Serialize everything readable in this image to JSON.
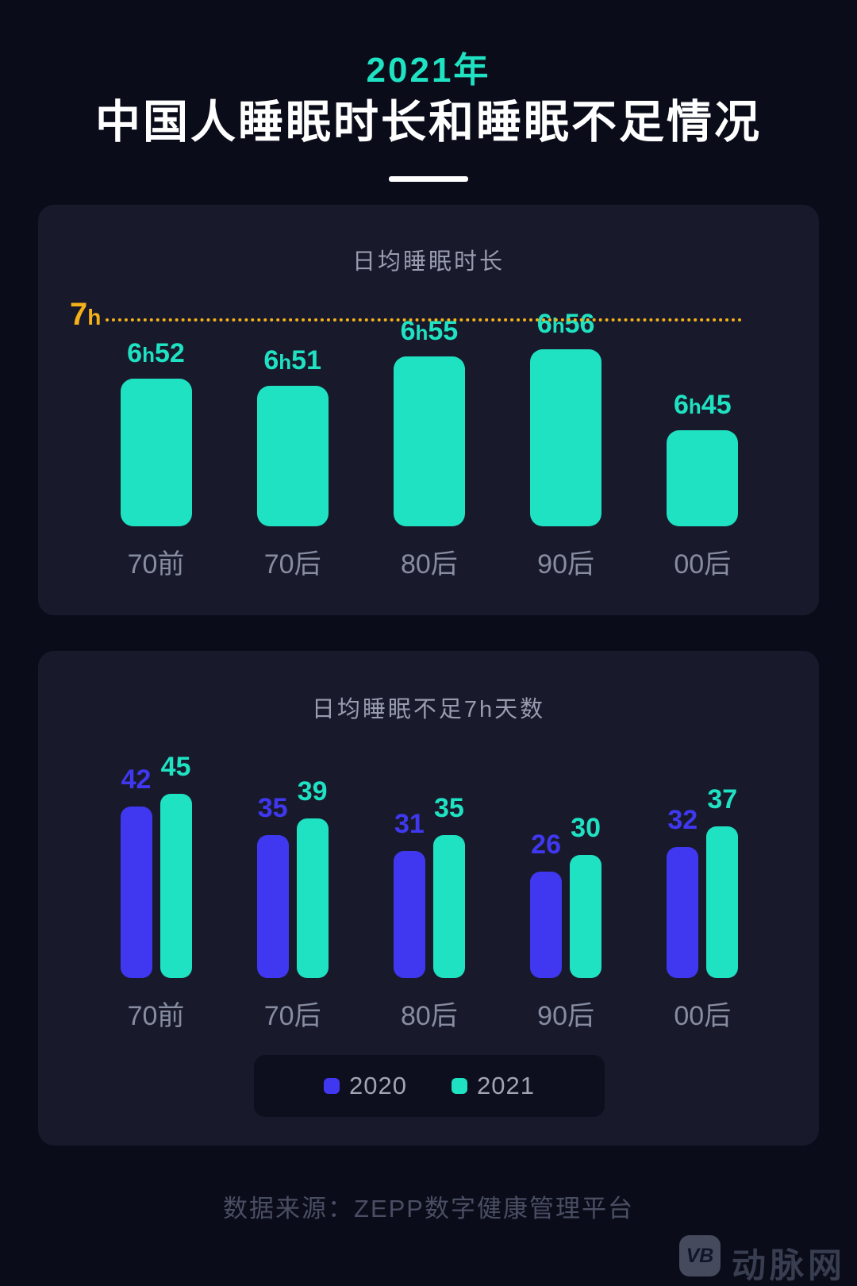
{
  "header": {
    "year_label": "2021年",
    "title": "中国人睡眠时长和睡眠不足情况"
  },
  "colors": {
    "page_bg": "#0a0c1a",
    "card_bg": "#181a2c",
    "legend_bg": "#0d0f1f",
    "teal": "#1fe2c2",
    "blue": "#4038f0",
    "yellow": "#f5b118",
    "title_white": "#ffffff",
    "chart_title_gray": "#989cae",
    "category_gray": "#878ca0",
    "footer_gray": "#4a4e62"
  },
  "chart_data": [
    {
      "type": "bar",
      "title": "日均睡眠时长",
      "categories": [
        "70前",
        "70后",
        "80后",
        "90后",
        "00后"
      ],
      "value_labels": [
        "6h52",
        "6h51",
        "6h55",
        "6h56",
        "6h45"
      ],
      "values_minutes": [
        412,
        411,
        415,
        416,
        405
      ],
      "bar_color": "#1fe2c2",
      "ref_line": {
        "label": "7h",
        "minutes": 420,
        "color": "#f5b118",
        "style": "dotted"
      },
      "axis": {
        "baseline_minutes": 392,
        "grid": false
      }
    },
    {
      "type": "bar",
      "title": "日均睡眠不足7h天数",
      "categories": [
        "70前",
        "70后",
        "80后",
        "90后",
        "00后"
      ],
      "series": [
        {
          "name": "2020",
          "color": "#4038f0",
          "values": [
            42,
            35,
            31,
            26,
            32
          ]
        },
        {
          "name": "2021",
          "color": "#1fe2c2",
          "values": [
            45,
            39,
            35,
            30,
            37
          ]
        }
      ],
      "legend_position": "bottom"
    }
  ],
  "footer": {
    "source": "数据来源：ZEPP数字健康管理平台"
  },
  "watermark": {
    "logo_text": "VB",
    "site_name": "动脉网"
  }
}
